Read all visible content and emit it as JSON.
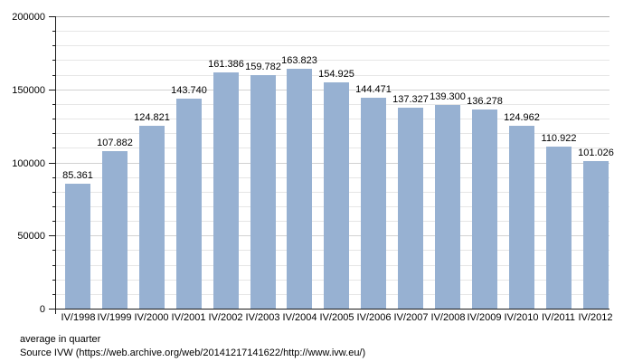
{
  "chart_data": {
    "type": "bar",
    "categories": [
      "IV/1998",
      "IV/1999",
      "IV/2000",
      "IV/2001",
      "IV/2002",
      "IV/2003",
      "IV/2004",
      "IV/2005",
      "IV/2006",
      "IV/2007",
      "IV/2008",
      "IV/2009",
      "IV/2010",
      "IV/2011",
      "IV/2012"
    ],
    "values": [
      85361,
      107882,
      124821,
      143740,
      161386,
      159782,
      163823,
      154925,
      144471,
      137327,
      139300,
      136278,
      124962,
      110922,
      101026
    ],
    "value_labels": [
      "85.361",
      "107.882",
      "124.821",
      "143.740",
      "161.386",
      "159.782",
      "163.823",
      "154.925",
      "144.471",
      "137.327",
      "139.300",
      "136.278",
      "124.962",
      "110.922",
      "101.026"
    ],
    "title": "",
    "xlabel": "",
    "ylabel": "",
    "ylim": [
      0,
      200000
    ],
    "y_major_ticks": [
      0,
      50000,
      100000,
      150000,
      200000
    ],
    "y_major_tick_labels": [
      "0",
      "50000",
      "100000",
      "150000",
      "200000"
    ],
    "y_minor_step": 10000,
    "grid": "horizontal-minor",
    "legend": "none"
  },
  "footer": {
    "caption": "average in quarter",
    "source": "Source IVW (https://web.archive.org/web/20141217141622/http://www.ivw.eu/)"
  },
  "colors": {
    "bar": "#97b1d2",
    "grid_minor": "#e6e6e6",
    "grid_major": "#d2d2d2",
    "grid_top": "#aaaaaa",
    "axis": "#1a1a1a",
    "text": "#000000"
  }
}
